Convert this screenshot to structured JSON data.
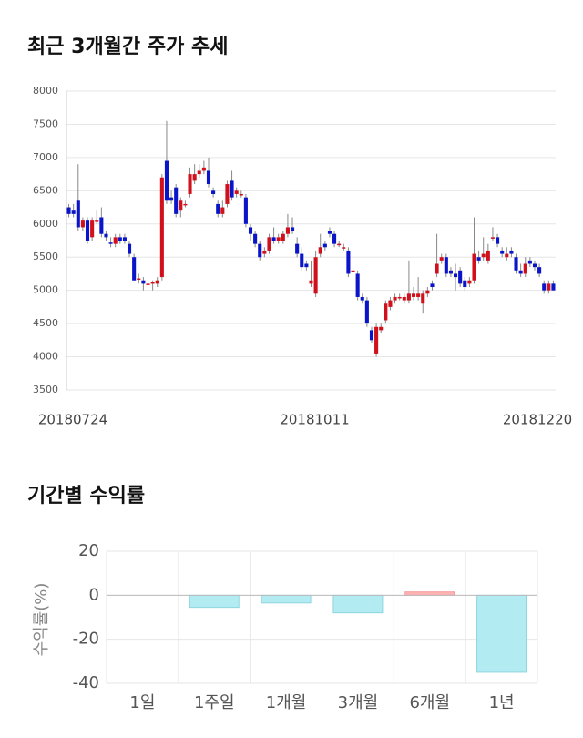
{
  "chart_data": [
    {
      "type": "candlestick",
      "title": "최근 3개월간 주가 추세",
      "categories": [
        "20180724",
        null,
        null,
        null,
        null,
        null,
        null,
        null,
        null,
        null,
        null,
        null,
        null,
        null,
        null,
        null,
        null,
        null,
        null,
        null,
        null,
        null,
        null,
        null,
        null,
        null,
        null,
        null,
        null,
        null,
        null,
        null,
        null,
        null,
        null,
        null,
        null,
        null,
        null,
        null,
        null,
        null,
        null,
        null,
        null,
        null,
        null,
        null,
        null,
        null,
        null,
        null,
        "20181011",
        null,
        null,
        null,
        null,
        null,
        null,
        null,
        null,
        null,
        null,
        null,
        null,
        null,
        null,
        null,
        null,
        null,
        null,
        null,
        null,
        null,
        null,
        null,
        null,
        null,
        null,
        null,
        null,
        null,
        null,
        null,
        null,
        null,
        null,
        null,
        null,
        null,
        null,
        null,
        null,
        null,
        null,
        null,
        null,
        null,
        null,
        null,
        null,
        null,
        null,
        null,
        "20181220"
      ],
      "open": [
        6250,
        6200,
        6350,
        5950,
        6050,
        5800,
        6050,
        6100,
        5850,
        5720,
        5700,
        5800,
        5800,
        5700,
        5500,
        5180,
        5150,
        5100,
        5100,
        5100,
        5200,
        6950,
        6400,
        6550,
        6200,
        6300,
        6450,
        6650,
        6750,
        6800,
        6800,
        6500,
        6300,
        6150,
        6300,
        6650,
        6450,
        6450,
        6400,
        5950,
        5850,
        5700,
        5550,
        5600,
        5800,
        5750,
        5750,
        5850,
        5950,
        5700,
        5550,
        5400,
        5100,
        4950,
        5550,
        5700,
        5900,
        5850,
        5700,
        5650,
        5600,
        5300,
        5250,
        4900,
        4850,
        4400,
        4050,
        4400,
        4550,
        4750,
        4850,
        4900,
        4850,
        4850,
        4900,
        4900,
        4800,
        4950,
        5100,
        5250,
        5450,
        5500,
        5300,
        5250,
        5300,
        5150,
        5100,
        5150,
        5500,
        5500,
        5450,
        5800,
        5800,
        5600,
        5500,
        5600,
        5500,
        5300,
        5250,
        5450,
        5400,
        5350,
        5100,
        5000,
        5100
      ],
      "high": [
        6300,
        6300,
        6900,
        6100,
        6100,
        6100,
        6200,
        6250,
        5900,
        5800,
        5850,
        5850,
        5850,
        5750,
        5550,
        5250,
        5200,
        5150,
        5150,
        5200,
        6750,
        7550,
        6500,
        6600,
        6400,
        6350,
        6850,
        6900,
        6900,
        6950,
        7000,
        6550,
        6350,
        6350,
        6650,
        6800,
        6550,
        6500,
        6450,
        6000,
        5900,
        5750,
        5650,
        5850,
        5950,
        5850,
        5900,
        6150,
        6100,
        5800,
        5650,
        5450,
        5450,
        5600,
        5850,
        5750,
        5950,
        5900,
        5750,
        5700,
        5650,
        5350,
        5300,
        4950,
        4900,
        4450,
        4500,
        4500,
        4850,
        4900,
        4950,
        4950,
        4950,
        5450,
        5050,
        5200,
        5000,
        5050,
        5150,
        5850,
        5550,
        5550,
        5350,
        5400,
        5350,
        5200,
        5200,
        6100,
        5600,
        5800,
        5700,
        5950,
        5850,
        5650,
        5650,
        5650,
        5550,
        5400,
        5500,
        5500,
        5450,
        5400,
        5150,
        5150,
        5150
      ],
      "low": [
        6100,
        6100,
        5900,
        5900,
        5700,
        5750,
        6000,
        5800,
        5750,
        5650,
        5650,
        5700,
        5700,
        5500,
        5150,
        5100,
        5000,
        5000,
        5000,
        5050,
        5150,
        6300,
        6300,
        6100,
        6100,
        6250,
        6400,
        6600,
        6700,
        6750,
        6550,
        6400,
        6100,
        6100,
        6250,
        6350,
        6400,
        6400,
        5950,
        5750,
        5650,
        5450,
        5500,
        5550,
        5700,
        5700,
        5700,
        5800,
        5850,
        5500,
        5300,
        5300,
        5050,
        4900,
        5500,
        5600,
        5800,
        5650,
        5650,
        5600,
        5200,
        5250,
        4850,
        4800,
        4450,
        4200,
        4000,
        4350,
        4500,
        4700,
        4800,
        4850,
        4800,
        4800,
        4850,
        4850,
        4650,
        4900,
        5000,
        5200,
        5400,
        5200,
        5200,
        5000,
        5050,
        5000,
        5050,
        5100,
        5400,
        5450,
        5400,
        5750,
        5650,
        5500,
        5450,
        5500,
        5250,
        5200,
        5200,
        5350,
        5300,
        5200,
        4950,
        4950,
        5000
      ],
      "close": [
        6150,
        6150,
        5950,
        6050,
        5750,
        6050,
        6050,
        5850,
        5800,
        5700,
        5800,
        5750,
        5750,
        5550,
        5150,
        5180,
        5100,
        5100,
        5120,
        5150,
        6700,
        6350,
        6350,
        6150,
        6350,
        6300,
        6750,
        6750,
        6800,
        6850,
        6600,
        6450,
        6150,
        6250,
        6600,
        6400,
        6500,
        6450,
        6000,
        5850,
        5700,
        5500,
        5600,
        5800,
        5750,
        5800,
        5850,
        5950,
        5900,
        5550,
        5350,
        5350,
        5150,
        5500,
        5650,
        5650,
        5850,
        5700,
        5700,
        5650,
        5250,
        5300,
        4900,
        4850,
        4500,
        4250,
        4450,
        4450,
        4800,
        4850,
        4900,
        4900,
        4900,
        4950,
        4950,
        4950,
        4950,
        5000,
        5050,
        5400,
        5500,
        5250,
        5250,
        5200,
        5100,
        5050,
        5150,
        5550,
        5450,
        5550,
        5600,
        5800,
        5700,
        5550,
        5550,
        5550,
        5300,
        5250,
        5400,
        5400,
        5350,
        5250,
        5000,
        5100,
        5000
      ],
      "up_color": "#d0111b",
      "down_color": "#0a14c8",
      "ylim": [
        3500,
        8000
      ],
      "yticks": [
        3500,
        4000,
        4500,
        5000,
        5500,
        6000,
        6500,
        7000,
        7500,
        8000
      ],
      "grid": true
    },
    {
      "type": "bar",
      "title": "기간별 수익률",
      "ylabel": "수익률(%)",
      "categories": [
        "1일",
        "1주일",
        "1개월",
        "3개월",
        "6개월",
        "1년"
      ],
      "values": [
        0,
        -5.5,
        -3.5,
        -8,
        1.5,
        -35
      ],
      "positive_color": "#ffb3b3",
      "negative_color": "#b2ebf2",
      "ylim": [
        -40,
        20
      ],
      "yticks": [
        -40,
        -20,
        0,
        20
      ],
      "grid": true
    }
  ]
}
